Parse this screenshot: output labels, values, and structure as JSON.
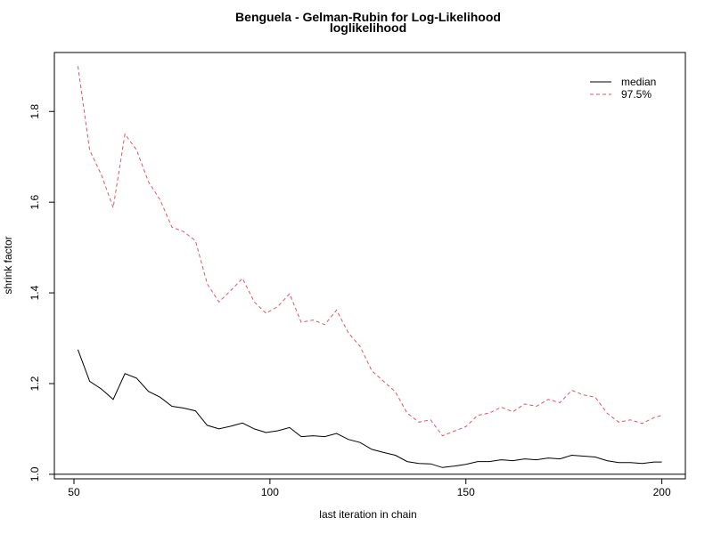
{
  "chart_data": {
    "type": "line",
    "title": "Benguela - Gelman-Rubin for Log-Likelihood",
    "subtitle": "loglikelihood",
    "xlabel": "last iteration in chain",
    "ylabel": "shrink factor",
    "xlim": [
      45,
      206
    ],
    "ylim": [
      0.99,
      1.93
    ],
    "xticks": [
      50,
      100,
      150,
      200
    ],
    "yticks": [
      1.0,
      1.2,
      1.4,
      1.6,
      1.8
    ],
    "xtick_labels": [
      "50",
      "100",
      "150",
      "200"
    ],
    "ytick_labels": [
      "1.0",
      "1.2",
      "1.4",
      "1.6",
      "1.8"
    ],
    "reference_line": 1.0,
    "grid": false,
    "legend_position": "top-right",
    "x": [
      51,
      54,
      57,
      60,
      63,
      66,
      69,
      72,
      75,
      78,
      81,
      84,
      87,
      90,
      93,
      96,
      99,
      102,
      105,
      108,
      111,
      114,
      117,
      120,
      123,
      126,
      129,
      132,
      135,
      138,
      141,
      144,
      147,
      150,
      153,
      156,
      159,
      162,
      165,
      168,
      171,
      174,
      177,
      180,
      183,
      186,
      189,
      192,
      195,
      198,
      200
    ],
    "series": [
      {
        "name": "median",
        "color": "#000000",
        "dash": "solid",
        "values": [
          1.275,
          1.205,
          1.188,
          1.165,
          1.222,
          1.212,
          1.183,
          1.17,
          1.15,
          1.146,
          1.14,
          1.108,
          1.1,
          1.106,
          1.113,
          1.1,
          1.092,
          1.096,
          1.103,
          1.083,
          1.085,
          1.083,
          1.09,
          1.077,
          1.07,
          1.055,
          1.048,
          1.042,
          1.028,
          1.024,
          1.023,
          1.015,
          1.018,
          1.022,
          1.028,
          1.028,
          1.032,
          1.03,
          1.034,
          1.032,
          1.036,
          1.034,
          1.042,
          1.04,
          1.038,
          1.03,
          1.026,
          1.026,
          1.024,
          1.027,
          1.027
        ]
      },
      {
        "name": "97.5%",
        "color": "#DF536B",
        "dash": "dashed",
        "values": [
          1.9,
          1.715,
          1.66,
          1.588,
          1.75,
          1.715,
          1.645,
          1.605,
          1.545,
          1.535,
          1.515,
          1.42,
          1.38,
          1.405,
          1.432,
          1.38,
          1.355,
          1.37,
          1.398,
          1.335,
          1.34,
          1.33,
          1.362,
          1.312,
          1.282,
          1.228,
          1.205,
          1.182,
          1.135,
          1.115,
          1.12,
          1.085,
          1.095,
          1.105,
          1.13,
          1.135,
          1.148,
          1.138,
          1.155,
          1.15,
          1.165,
          1.158,
          1.185,
          1.175,
          1.17,
          1.135,
          1.115,
          1.12,
          1.112,
          1.125,
          1.13
        ]
      }
    ]
  }
}
